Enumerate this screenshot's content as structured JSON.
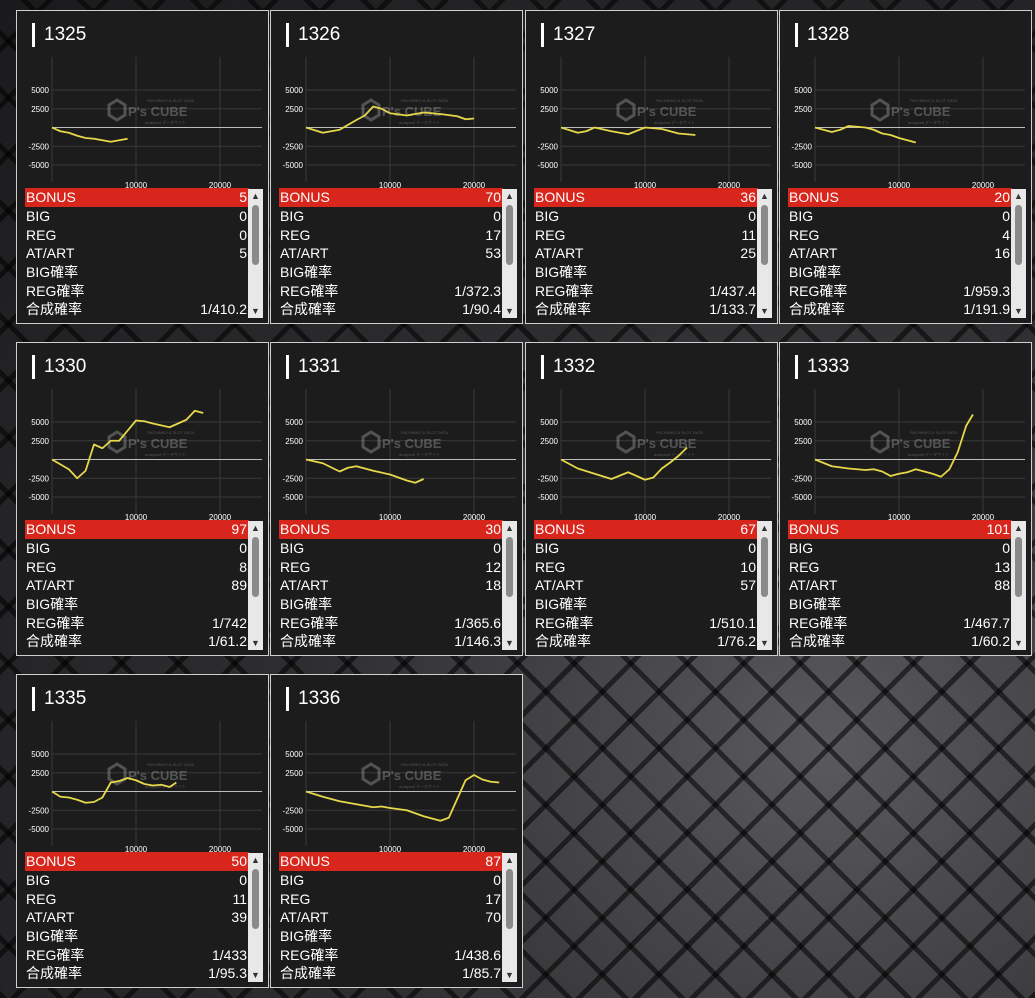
{
  "labels": {
    "bonus": "BONUS",
    "big": "BIG",
    "reg": "REG",
    "atart": "AT/ART",
    "big_rate": "BIG確率",
    "reg_rate": "REG確率",
    "combined_rate": "合成確率"
  },
  "watermark": {
    "main": "P's CUBE",
    "top": "PACHINKO & SLOT DATA",
    "sub": "analyzed データサイト"
  },
  "colors": {
    "line": "#e6d84a",
    "bonus_bg": "#d9261c",
    "card_bg": "#1c1c1c"
  },
  "chart_axes": {
    "y_ticks": [
      5000,
      2500,
      -2500,
      -5000
    ],
    "x_ticks": [
      10000,
      20000
    ],
    "ylim": [
      -7000,
      7000
    ],
    "xlim": [
      0,
      25000
    ]
  },
  "machines": [
    {
      "id": "1325",
      "bonus": "5",
      "big": "0",
      "reg": "0",
      "atart": "5",
      "big_rate": "",
      "reg_rate": "",
      "combined_rate": "1/410.2",
      "chart_data": {
        "type": "line",
        "x": [
          0,
          1000,
          2000,
          3000,
          4000,
          5000,
          6000,
          7000,
          8000,
          9000
        ],
        "y": [
          0,
          -500,
          -700,
          -1100,
          -1400,
          -1500,
          -1700,
          -1900,
          -1700,
          -1500
        ]
      }
    },
    {
      "id": "1326",
      "bonus": "70",
      "big": "0",
      "reg": "17",
      "atart": "53",
      "big_rate": "",
      "reg_rate": "1/372.3",
      "combined_rate": "1/90.4",
      "chart_data": {
        "type": "line",
        "x": [
          0,
          2000,
          3000,
          4000,
          6000,
          7000,
          8000,
          9000,
          10000,
          12000,
          14000,
          16000,
          18000,
          19000,
          20000
        ],
        "y": [
          0,
          -700,
          -500,
          -300,
          1000,
          1600,
          2800,
          2500,
          1900,
          1600,
          2000,
          1800,
          1500,
          1100,
          1200
        ]
      }
    },
    {
      "id": "1327",
      "bonus": "36",
      "big": "0",
      "reg": "11",
      "atart": "25",
      "big_rate": "",
      "reg_rate": "1/437.4",
      "combined_rate": "1/133.7",
      "chart_data": {
        "type": "line",
        "x": [
          0,
          2000,
          3000,
          4000,
          6000,
          8000,
          10000,
          12000,
          14000,
          16000
        ],
        "y": [
          0,
          -700,
          -500,
          0,
          -500,
          -900,
          0,
          -200,
          -800,
          -1000
        ]
      }
    },
    {
      "id": "1328",
      "bonus": "20",
      "big": "0",
      "reg": "4",
      "atart": "16",
      "big_rate": "",
      "reg_rate": "1/959.3",
      "combined_rate": "1/191.9",
      "chart_data": {
        "type": "line",
        "x": [
          0,
          2000,
          3000,
          4000,
          6000,
          7000,
          8000,
          9000,
          10000,
          11000,
          12000
        ],
        "y": [
          0,
          -600,
          -300,
          200,
          0,
          -300,
          -800,
          -1000,
          -1400,
          -1700,
          -2000
        ]
      }
    },
    {
      "id": "1330",
      "bonus": "97",
      "big": "0",
      "reg": "8",
      "atart": "89",
      "big_rate": "",
      "reg_rate": "1/742",
      "combined_rate": "1/61.2",
      "chart_data": {
        "type": "line",
        "x": [
          0,
          2000,
          3000,
          4000,
          5000,
          6000,
          7000,
          8000,
          10000,
          11000,
          12000,
          14000,
          16000,
          17000,
          18000
        ],
        "y": [
          0,
          -1300,
          -2500,
          -1500,
          2000,
          1500,
          2500,
          2500,
          5200,
          5100,
          4800,
          4300,
          5300,
          6500,
          6200
        ]
      }
    },
    {
      "id": "1331",
      "bonus": "30",
      "big": "0",
      "reg": "12",
      "atart": "18",
      "big_rate": "",
      "reg_rate": "1/365.6",
      "combined_rate": "1/146.3",
      "chart_data": {
        "type": "line",
        "x": [
          0,
          2000,
          4000,
          5000,
          6000,
          7000,
          8000,
          10000,
          12000,
          13000,
          14000
        ],
        "y": [
          0,
          -500,
          -1600,
          -1100,
          -900,
          -1200,
          -1500,
          -2000,
          -2800,
          -3100,
          -2600
        ]
      }
    },
    {
      "id": "1332",
      "bonus": "67",
      "big": "0",
      "reg": "10",
      "atart": "57",
      "big_rate": "",
      "reg_rate": "1/510.1",
      "combined_rate": "1/76.2",
      "chart_data": {
        "type": "line",
        "x": [
          0,
          2000,
          4000,
          6000,
          8000,
          9000,
          10000,
          11000,
          12000,
          13000,
          14000,
          15000
        ],
        "y": [
          0,
          -1200,
          -1900,
          -2600,
          -1700,
          -2200,
          -2700,
          -2400,
          -1200,
          -400,
          500,
          1600
        ]
      }
    },
    {
      "id": "1333",
      "bonus": "101",
      "big": "0",
      "reg": "13",
      "atart": "88",
      "big_rate": "",
      "reg_rate": "1/467.7",
      "combined_rate": "1/60.2",
      "chart_data": {
        "type": "line",
        "x": [
          0,
          2000,
          4000,
          6000,
          7000,
          8000,
          9000,
          10000,
          11000,
          12000,
          14000,
          15000,
          16000,
          17000,
          18000,
          18800
        ],
        "y": [
          0,
          -900,
          -1200,
          -1400,
          -1300,
          -1600,
          -2200,
          -1900,
          -1700,
          -1300,
          -1900,
          -2300,
          -1300,
          1000,
          4500,
          6000
        ]
      }
    },
    {
      "id": "1335",
      "bonus": "50",
      "big": "0",
      "reg": "11",
      "atart": "39",
      "big_rate": "",
      "reg_rate": "1/433",
      "combined_rate": "1/95.3",
      "chart_data": {
        "type": "line",
        "x": [
          0,
          1000,
          2000,
          3000,
          4000,
          5000,
          6000,
          7000,
          8000,
          9000,
          10000,
          11000,
          12000,
          13000,
          14000,
          14800
        ],
        "y": [
          0,
          -700,
          -800,
          -1100,
          -1500,
          -1400,
          -800,
          1200,
          1400,
          1800,
          1500,
          1000,
          800,
          900,
          600,
          1200
        ]
      }
    },
    {
      "id": "1336",
      "bonus": "87",
      "big": "0",
      "reg": "17",
      "atart": "70",
      "big_rate": "",
      "reg_rate": "1/438.6",
      "combined_rate": "1/85.7",
      "chart_data": {
        "type": "line",
        "x": [
          0,
          2000,
          4000,
          6000,
          8000,
          9000,
          10000,
          12000,
          14000,
          15000,
          16000,
          17000,
          18000,
          19000,
          20000,
          21000,
          22000,
          23000
        ],
        "y": [
          0,
          -700,
          -1300,
          -1700,
          -2100,
          -2000,
          -2200,
          -2500,
          -3300,
          -3600,
          -3900,
          -3500,
          -1000,
          1500,
          2200,
          1600,
          1300,
          1200
        ]
      }
    }
  ]
}
